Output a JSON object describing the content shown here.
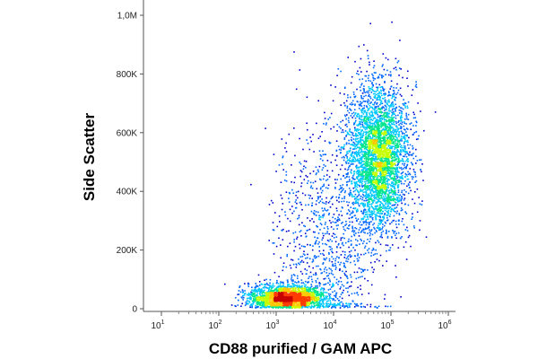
{
  "chart_data": {
    "type": "scatter",
    "subtype": "flow-cytometry density dot plot",
    "xlabel": "CD88 purified / GAM APC",
    "ylabel": "Side Scatter",
    "x_scale": "log",
    "x_range": [
      10,
      1000000
    ],
    "y_range": [
      0,
      1050000
    ],
    "x_ticks": [
      {
        "value": 10,
        "base": "10",
        "exp": "1"
      },
      {
        "value": 100,
        "base": "10",
        "exp": "2"
      },
      {
        "value": 1000,
        "base": "10",
        "exp": "3"
      },
      {
        "value": 10000,
        "base": "10",
        "exp": "4"
      },
      {
        "value": 100000,
        "base": "10",
        "exp": "5"
      },
      {
        "value": 1000000,
        "base": "10",
        "exp": "6"
      }
    ],
    "y_ticks": [
      {
        "value": 0,
        "label": "0"
      },
      {
        "value": 200000,
        "label": "200K"
      },
      {
        "value": 400000,
        "label": "400K"
      },
      {
        "value": 600000,
        "label": "600K"
      },
      {
        "value": 800000,
        "label": "800K"
      },
      {
        "value": 1000000,
        "label": "1,0M"
      }
    ],
    "populations": [
      {
        "center_x": 1500,
        "center_y": 40000,
        "spread_log_x": 0.32,
        "spread_y": 22000,
        "density": "high",
        "events": 2400
      },
      {
        "center_x": 60000,
        "center_y": 520000,
        "spread_log_x": 0.26,
        "spread_y": 120000,
        "density": "medium",
        "events": 3800
      },
      {
        "center_x": 8000,
        "center_y": 250000,
        "spread_log_x": 0.45,
        "spread_y": 200000,
        "density": "low",
        "events": 1000
      }
    ],
    "color_scale": [
      "#0000c8",
      "#0066ff",
      "#00c8ff",
      "#00e68c",
      "#c8ff00",
      "#ffc800",
      "#ff3c00",
      "#c80000"
    ],
    "grid": false,
    "legend": "none"
  }
}
